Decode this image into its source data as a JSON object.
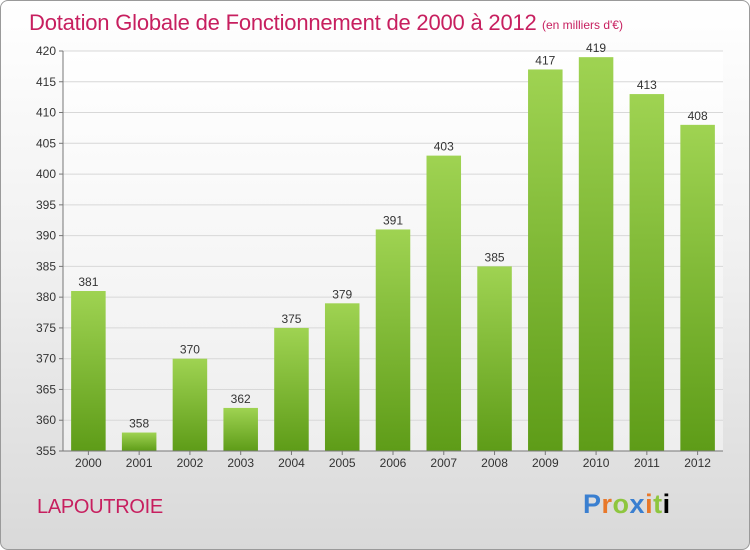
{
  "title": "Dotation Globale de Fonctionnement de 2000 à 2012",
  "unit_note": "(en milliers d'€)",
  "place_name": "LAPOUTROIE",
  "logo": {
    "text": "Proxiti",
    "letters": [
      "P",
      "r",
      "o",
      "x",
      "i",
      "t",
      "i"
    ]
  },
  "colors": {
    "title": "#c71f5f",
    "bar_light": "#9fd352",
    "bar_dark": "#5e9c18"
  },
  "chart_data": {
    "type": "bar",
    "title": "Dotation Globale de Fonctionnement de 2000 à 2012",
    "ylabel": "",
    "xlabel": "",
    "categories": [
      "2000",
      "2001",
      "2002",
      "2003",
      "2004",
      "2005",
      "2006",
      "2007",
      "2008",
      "2009",
      "2010",
      "2011",
      "2012"
    ],
    "values": [
      381,
      358,
      370,
      362,
      375,
      379,
      391,
      403,
      385,
      417,
      419,
      413,
      408
    ],
    "ylim": [
      355,
      420
    ],
    "yticks": [
      355,
      360,
      365,
      370,
      375,
      380,
      385,
      390,
      395,
      400,
      405,
      410,
      415,
      420
    ],
    "grid": true,
    "data_labels": true
  }
}
